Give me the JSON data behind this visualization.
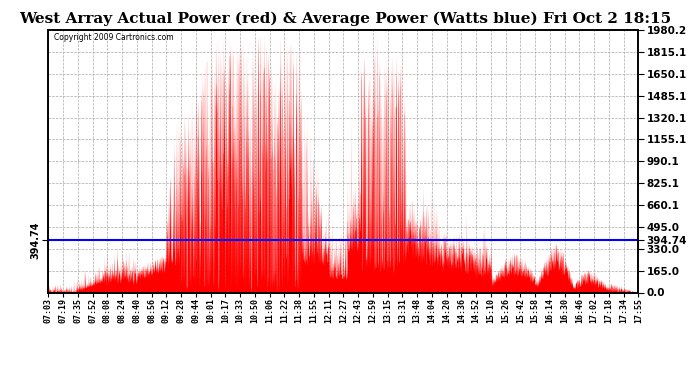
{
  "title": "West Array Actual Power (red) & Average Power (Watts blue) Fri Oct 2 18:15",
  "copyright": "Copyright 2009 Cartronics.com",
  "avg_power": 394.74,
  "ymax": 1980.2,
  "ymin": 0.0,
  "yticks": [
    0.0,
    165.0,
    330.0,
    495.0,
    660.1,
    825.1,
    990.1,
    1155.1,
    1320.1,
    1485.1,
    1650.1,
    1815.1,
    1980.2
  ],
  "fill_color": "#FF0000",
  "avg_line_color": "#0000FF",
  "bg_color": "#FFFFFF",
  "grid_color": "#AAAAAA",
  "title_fontsize": 11,
  "xtick_labels": [
    "07:03",
    "07:19",
    "07:35",
    "07:52",
    "08:08",
    "08:24",
    "08:40",
    "08:56",
    "09:12",
    "09:28",
    "09:44",
    "10:01",
    "10:17",
    "10:33",
    "10:50",
    "11:06",
    "11:22",
    "11:38",
    "11:55",
    "12:11",
    "12:27",
    "12:43",
    "12:59",
    "13:15",
    "13:31",
    "13:48",
    "14:04",
    "14:20",
    "14:36",
    "14:52",
    "15:10",
    "15:26",
    "15:42",
    "15:58",
    "16:14",
    "16:30",
    "16:46",
    "17:02",
    "17:18",
    "17:34",
    "17:55"
  ]
}
